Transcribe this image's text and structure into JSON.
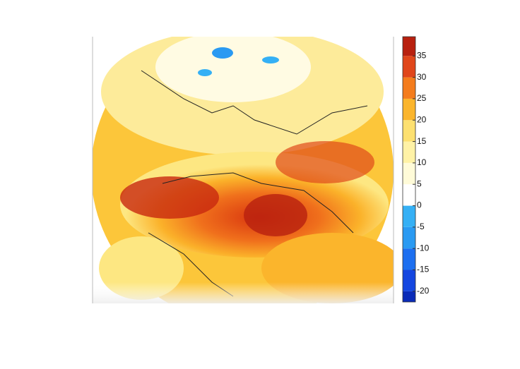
{
  "colorbar": {
    "ticks": [
      35,
      30,
      25,
      20,
      15,
      10,
      5,
      0,
      -5,
      -10,
      -15,
      -20
    ],
    "range": [
      -22.5,
      39.5
    ],
    "colors": [
      "#0a2bb8",
      "#1446e0",
      "#1c6ff0",
      "#2a9af2",
      "#35b0f5",
      "#ffffff",
      "#fffbd8",
      "#fff2a6",
      "#fde070",
      "#fbb52c",
      "#f47c1c",
      "#e0461a",
      "#b8200f",
      "#7a1208"
    ]
  }
}
